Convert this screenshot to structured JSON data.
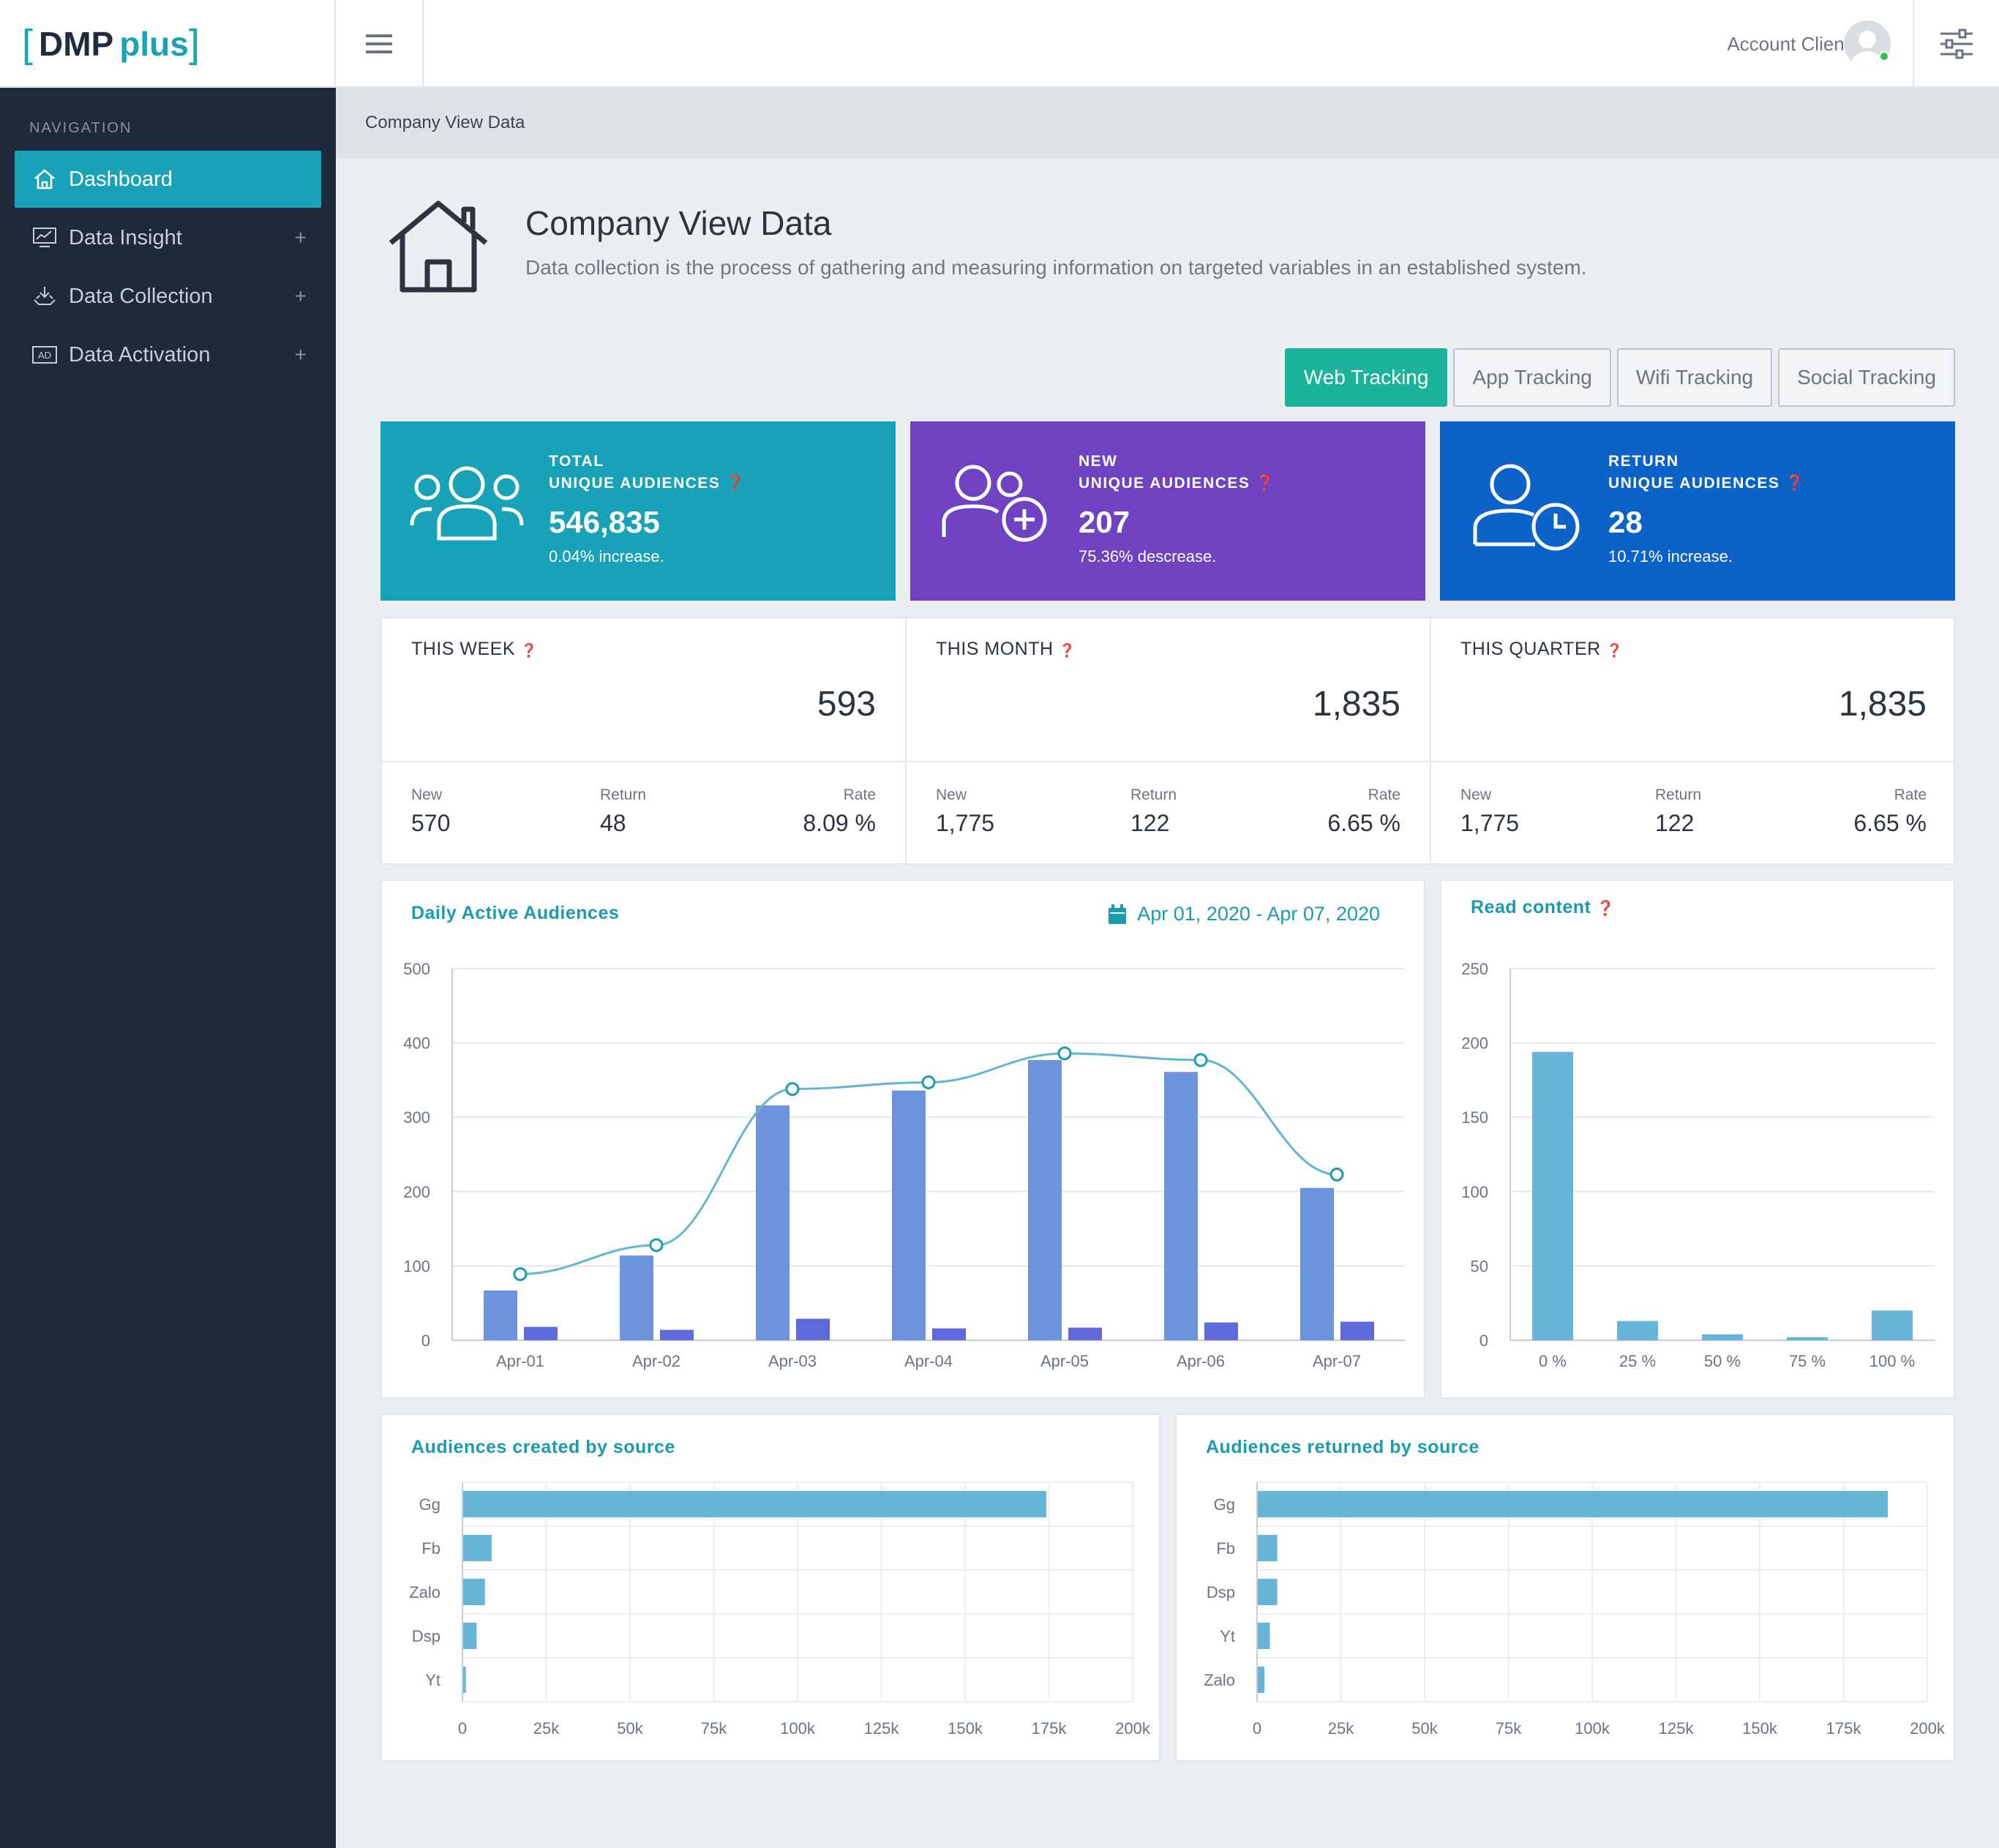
{
  "header": {
    "logo_prefix": "DMP",
    "logo_suffix": "plus",
    "account": "Account Client"
  },
  "sidebar": {
    "heading": "NAVIGATION",
    "items": [
      {
        "label": "Dashboard",
        "icon": "home-icon",
        "active": true
      },
      {
        "label": "Data Insight",
        "icon": "chart-screen-icon",
        "expand": "+"
      },
      {
        "label": "Data Collection",
        "icon": "collection-icon",
        "expand": "+"
      },
      {
        "label": "Data Activation",
        "icon": "ad-icon",
        "expand": "+"
      }
    ]
  },
  "breadcrumb": "Company View Data",
  "page": {
    "title": "Company View Data",
    "subtitle": "Data collection is the process of gathering and measuring information on targeted variables in an established system."
  },
  "tabs": [
    "Web Tracking",
    "App Tracking",
    "Wifi Tracking",
    "Social Tracking"
  ],
  "kpis": [
    {
      "line1": "TOTAL",
      "line2": "UNIQUE AUDIENCES",
      "value": "546,835",
      "change": "0.04% increase.",
      "color": "#17a2b8"
    },
    {
      "line1": "NEW",
      "line2": "UNIQUE AUDIENCES",
      "value": "207",
      "change": "75.36% descrease.",
      "color": "#6f42c1"
    },
    {
      "line1": "RETURN",
      "line2": "UNIQUE AUDIENCES",
      "value": "28",
      "change": "10.71% increase.",
      "color": "#0b63c9"
    }
  ],
  "stats": [
    {
      "title": "THIS WEEK",
      "total": "593",
      "new_label": "New",
      "new": "570",
      "return_label": "Return",
      "return": "48",
      "rate_label": "Rate",
      "rate": "8.09 %"
    },
    {
      "title": "THIS MONTH",
      "total": "1,835",
      "new_label": "New",
      "new": "1,775",
      "return_label": "Return",
      "return": "122",
      "rate_label": "Rate",
      "rate": "6.65 %"
    },
    {
      "title": "THIS QUARTER",
      "total": "1,835",
      "new_label": "New",
      "new": "1,775",
      "return_label": "Return",
      "return": "122",
      "rate_label": "Rate",
      "rate": "6.65 %"
    }
  ],
  "daily_card": {
    "title": "Daily Active Audiences",
    "date_range": "Apr 01, 2020 - Apr 07, 2020"
  },
  "read_card": {
    "title": "Read content"
  },
  "created_card": {
    "title": "Audiences created by source"
  },
  "returned_card": {
    "title": "Audiences returned by source"
  },
  "chart_data": [
    {
      "type": "bar",
      "name": "daily",
      "categories": [
        "Apr-01",
        "Apr-02",
        "Apr-03",
        "Apr-04",
        "Apr-05",
        "Apr-06",
        "Apr-07"
      ],
      "series": [
        {
          "values": [
            67,
            114,
            316,
            336,
            377,
            361,
            205
          ],
          "color": "#6b94dd"
        },
        {
          "values": [
            18,
            14,
            29,
            16,
            17,
            24,
            25
          ],
          "color": "#6069d9"
        },
        {
          "type": "line",
          "values": [
            89,
            128,
            338,
            347,
            386,
            377,
            223
          ],
          "color": "#62b5d5"
        }
      ],
      "ylim": [
        0,
        500
      ],
      "yticks": [
        0,
        100,
        200,
        300,
        400,
        500
      ]
    },
    {
      "type": "bar",
      "name": "read",
      "categories": [
        "0 %",
        "25 %",
        "50 %",
        "75 %",
        "100 %"
      ],
      "values": [
        194,
        13,
        4,
        2,
        20
      ],
      "ylim": [
        0,
        250
      ],
      "yticks": [
        0,
        50,
        100,
        150,
        200,
        250
      ],
      "color": "#67b4d9"
    },
    {
      "type": "bar",
      "orientation": "horizontal",
      "name": "created",
      "categories": [
        "Gg",
        "Fb",
        "Zalo",
        "Dsp",
        "Yt"
      ],
      "values": [
        174000,
        8500,
        6500,
        4000,
        800
      ],
      "xlim": [
        0,
        200000
      ],
      "xticks": [
        "0",
        "25k",
        "50k",
        "75k",
        "100k",
        "125k",
        "150k",
        "175k",
        "200k"
      ],
      "color": "#67b4d9"
    },
    {
      "type": "bar",
      "orientation": "horizontal",
      "name": "returned",
      "categories": [
        "Gg",
        "Fb",
        "Dsp",
        "Yt",
        "Zalo"
      ],
      "values": [
        188000,
        5800,
        5800,
        3600,
        2000
      ],
      "xlim": [
        0,
        200000
      ],
      "xticks": [
        "0",
        "25k",
        "50k",
        "75k",
        "100k",
        "125k",
        "150k",
        "175k",
        "200k"
      ],
      "color": "#67b4d9"
    }
  ]
}
